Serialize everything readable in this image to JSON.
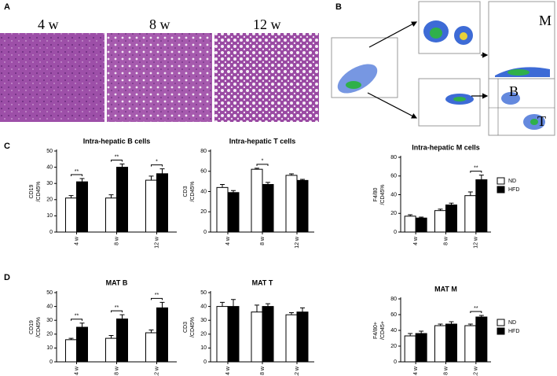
{
  "panels": [
    "A",
    "B",
    "C",
    "D"
  ],
  "panel_a": {
    "labels": [
      "4 w",
      "8 w",
      "12 w"
    ]
  },
  "panel_b": {
    "gate_labels": [
      "M",
      "B",
      "T"
    ]
  },
  "chart_data": [
    {
      "type": "bar",
      "title": "Intra-hepatic B cells",
      "ylabel": [
        "CD19",
        "/CD45%"
      ],
      "categories": [
        "4 w",
        "8 w",
        "12 w"
      ],
      "series": [
        {
          "name": "ND",
          "color": "#ffffff",
          "values": [
            21,
            21,
            32
          ],
          "errors": [
            1.5,
            2,
            2.5
          ]
        },
        {
          "name": "HFD",
          "color": "#000000",
          "values": [
            31,
            40,
            36
          ],
          "errors": [
            2,
            2,
            3
          ]
        }
      ],
      "annotations": [
        "**",
        "**",
        "*"
      ],
      "ylim": [
        0,
        50
      ],
      "yticks": [
        0,
        10,
        20,
        30,
        40,
        50
      ]
    },
    {
      "type": "bar",
      "title": "Intra-hepatic T cells",
      "ylabel": [
        "CD3",
        "/CD45%"
      ],
      "categories": [
        "4 w",
        "8 w",
        "12 w"
      ],
      "series": [
        {
          "name": "ND",
          "color": "#ffffff",
          "values": [
            44,
            62,
            56
          ],
          "errors": [
            3,
            1,
            1.5
          ]
        },
        {
          "name": "HFD",
          "color": "#000000",
          "values": [
            39,
            47,
            51
          ],
          "errors": [
            2,
            2,
            1
          ]
        }
      ],
      "annotations": [
        null,
        "*",
        null
      ],
      "ylim": [
        0,
        80
      ],
      "yticks": [
        0,
        20,
        40,
        60,
        80
      ]
    },
    {
      "type": "bar",
      "title": "Intra-hepatic M cells",
      "ylabel": [
        "F4/80",
        "/CD45%"
      ],
      "categories": [
        "4 w",
        "8 w",
        "12 w"
      ],
      "series": [
        {
          "name": "ND",
          "color": "#ffffff",
          "values": [
            17,
            23,
            39
          ],
          "errors": [
            1.5,
            1.5,
            4
          ]
        },
        {
          "name": "HFD",
          "color": "#000000",
          "values": [
            15,
            29,
            56
          ],
          "errors": [
            1,
            2,
            5
          ]
        }
      ],
      "annotations": [
        null,
        null,
        "**"
      ],
      "ylim": [
        0,
        80
      ],
      "yticks": [
        0,
        20,
        40,
        60,
        80
      ],
      "legend": true
    },
    {
      "type": "bar",
      "title": "MAT B",
      "ylabel": [
        "CD19",
        "/CD45%"
      ],
      "categories": [
        "4 w",
        "8 w",
        "12 w"
      ],
      "series": [
        {
          "name": "ND",
          "color": "#ffffff",
          "values": [
            16,
            17,
            21
          ],
          "errors": [
            1,
            2,
            2
          ]
        },
        {
          "name": "HFD",
          "color": "#000000",
          "values": [
            25,
            31,
            39
          ],
          "errors": [
            3,
            3,
            4
          ]
        }
      ],
      "annotations": [
        "**",
        "**",
        "**"
      ],
      "ylim": [
        0,
        50
      ],
      "yticks": [
        0,
        10,
        20,
        30,
        40,
        50
      ]
    },
    {
      "type": "bar",
      "title": "MAT T",
      "ylabel": [
        "CD3",
        "/CD45%"
      ],
      "categories": [
        "4 w",
        "8 w",
        "12 w"
      ],
      "series": [
        {
          "name": "ND",
          "color": "#ffffff",
          "values": [
            40,
            36,
            34
          ],
          "errors": [
            3,
            5,
            1.5
          ]
        },
        {
          "name": "HFD",
          "color": "#000000",
          "values": [
            40,
            40,
            36
          ],
          "errors": [
            5,
            2,
            3
          ]
        }
      ],
      "annotations": [
        null,
        null,
        null
      ],
      "ylim": [
        0,
        50
      ],
      "yticks": [
        0,
        10,
        20,
        30,
        40,
        50
      ]
    },
    {
      "type": "bar",
      "title": "MAT M",
      "ylabel": [
        "F4/80+",
        "/CD45+"
      ],
      "categories": [
        "4 w",
        "8 w",
        "12 w"
      ],
      "series": [
        {
          "name": "ND",
          "color": "#ffffff",
          "values": [
            33,
            46,
            46
          ],
          "errors": [
            3,
            2,
            2
          ]
        },
        {
          "name": "HFD",
          "color": "#000000",
          "values": [
            36,
            48,
            57
          ],
          "errors": [
            3,
            3,
            2
          ]
        }
      ],
      "annotations": [
        null,
        null,
        "**"
      ],
      "ylim": [
        0,
        80
      ],
      "yticks": [
        0,
        20,
        40,
        60,
        80
      ],
      "legend": true
    }
  ]
}
